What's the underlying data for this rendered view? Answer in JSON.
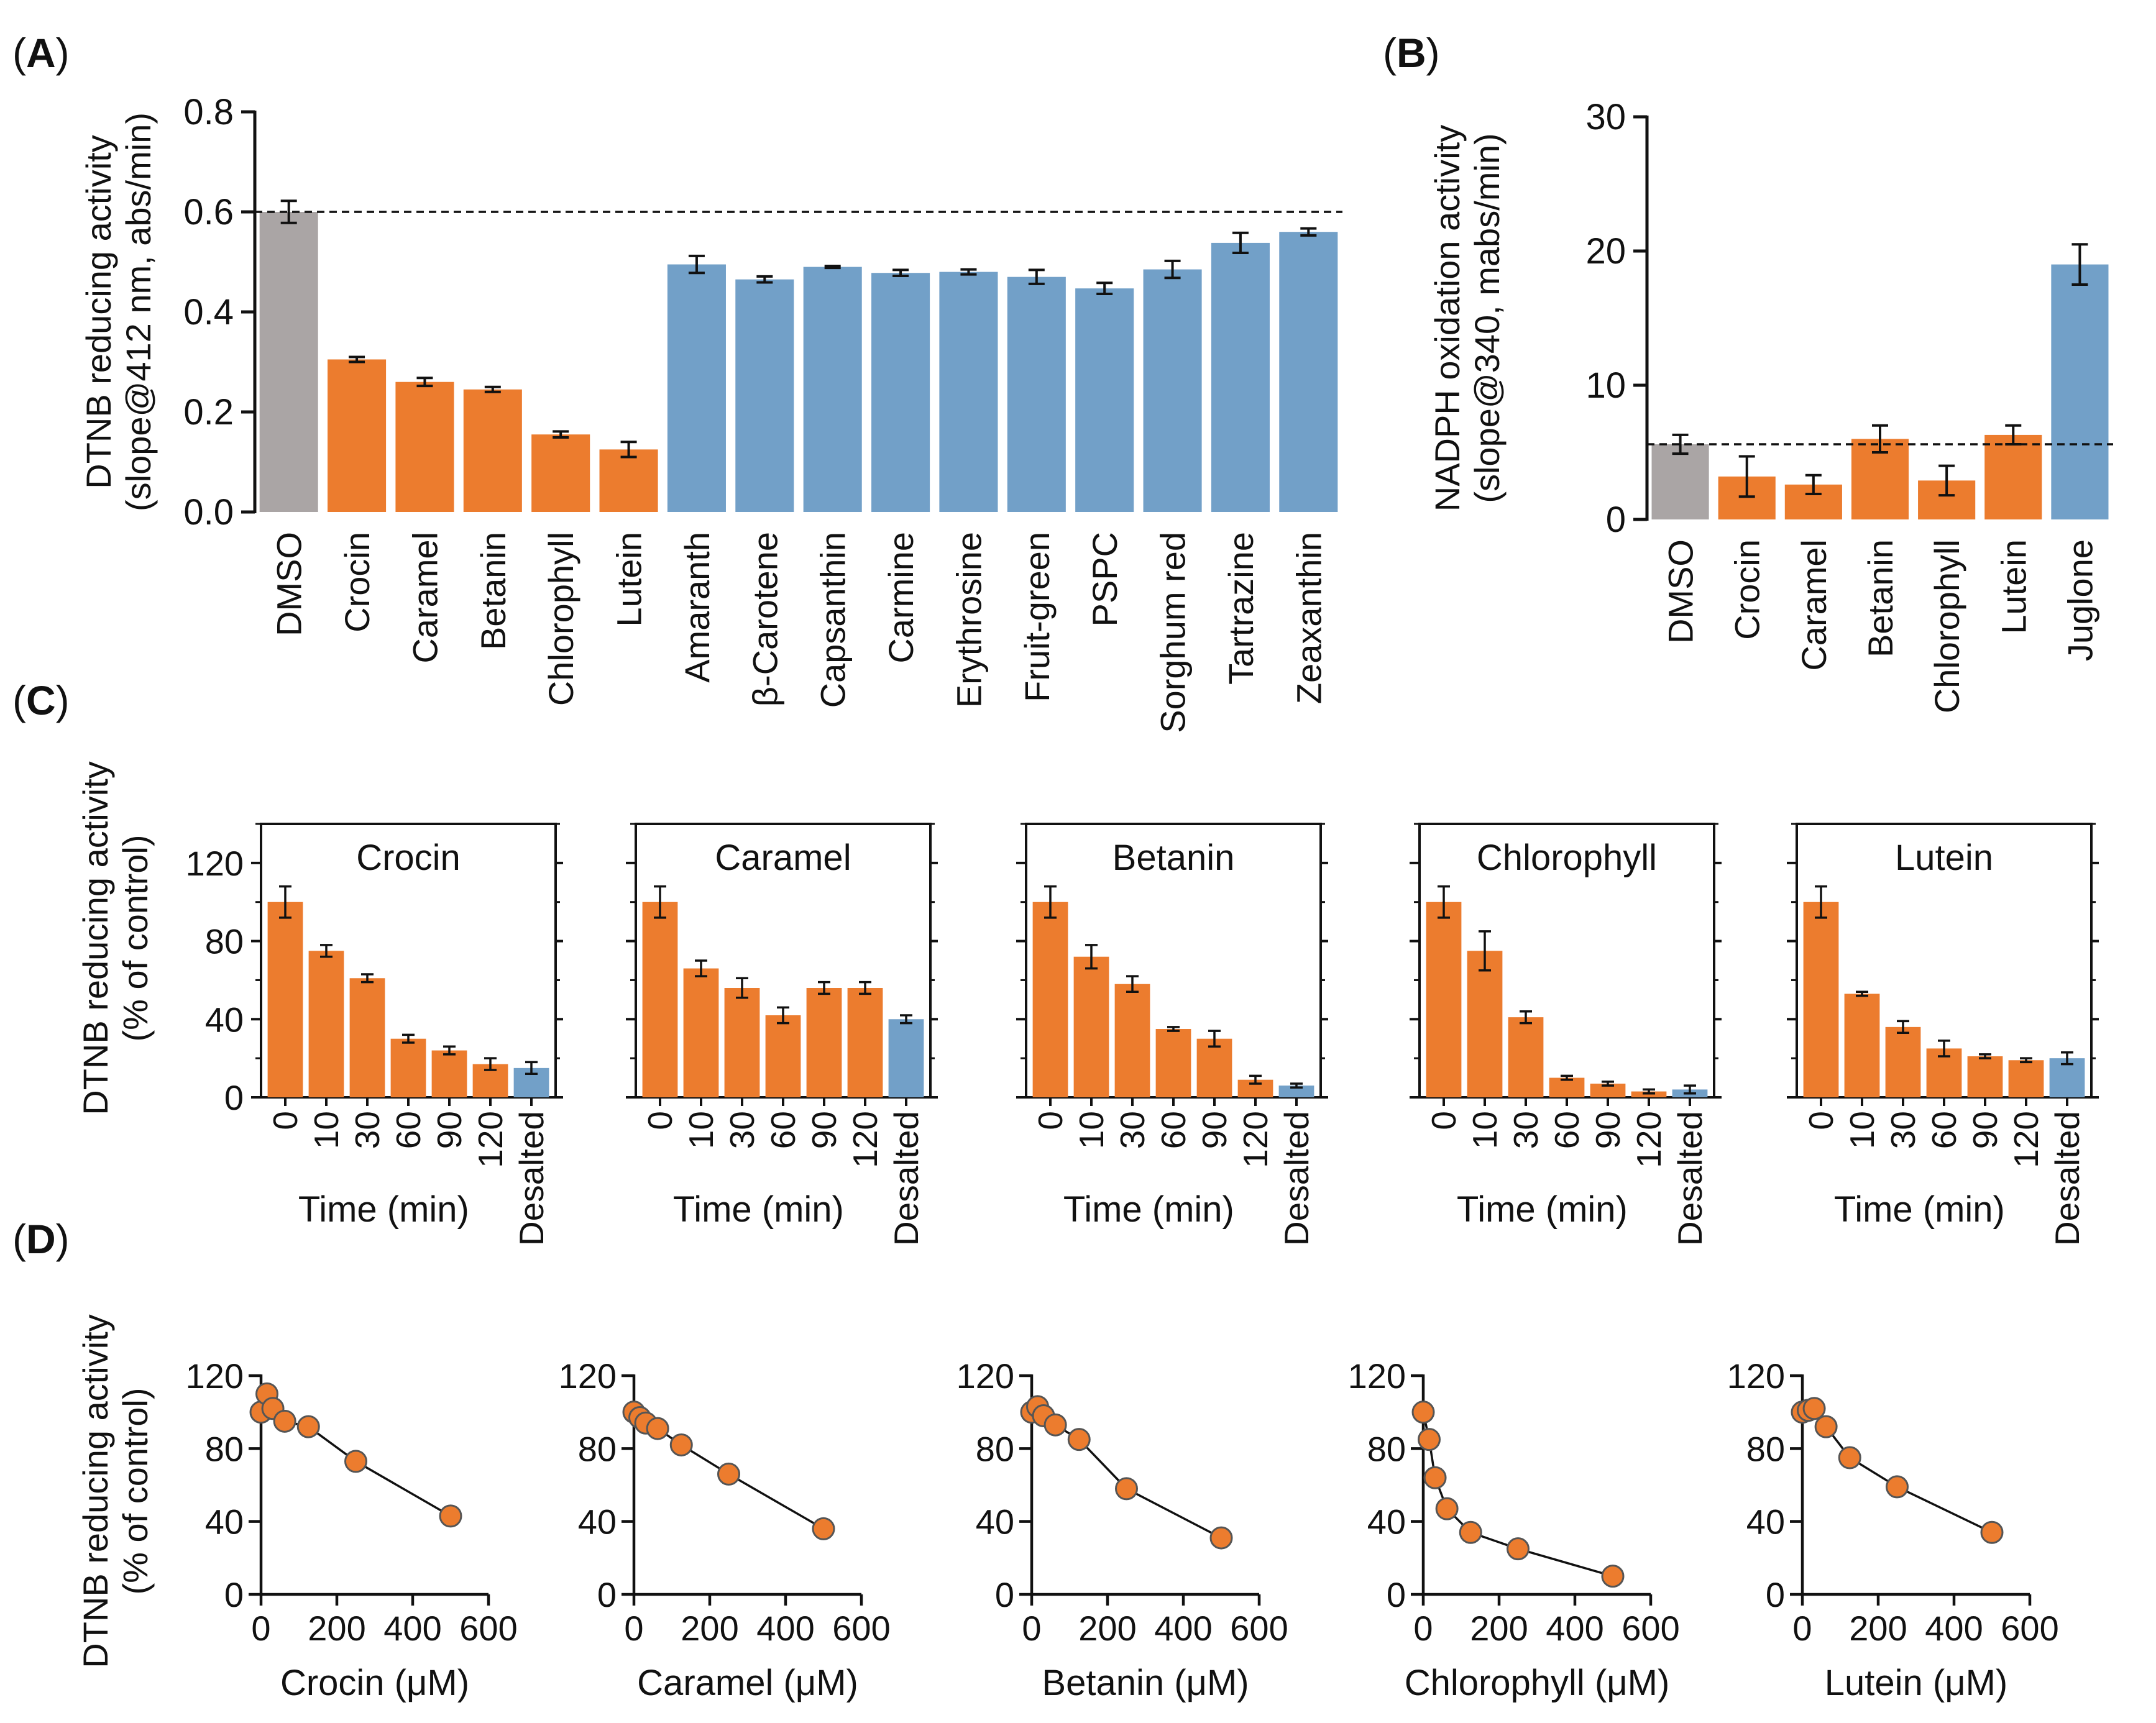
{
  "colors": {
    "gray": "#aaa5a5",
    "orange": "#ec7c2e",
    "blue": "#72a0c8",
    "red_label": "#c01020",
    "axis": "#111111",
    "edge": "#555555"
  },
  "panel_labels": {
    "A": {
      "open": "(",
      "letter": "A",
      "close": ")"
    },
    "B": {
      "open": "(",
      "letter": "B",
      "close": ")"
    },
    "C": {
      "open": "(",
      "letter": "C",
      "close": ")"
    },
    "D": {
      "open": "(",
      "letter": "D",
      "close": ")"
    }
  },
  "chart_data": [
    {
      "id": "A",
      "type": "bar",
      "ylabel_lines": [
        "DTNB reducing activity",
        "(slope@412 nm, abs/min)"
      ],
      "ylim": [
        0,
        0.8
      ],
      "yticks": [
        "0.0",
        "0.2",
        "0.4",
        "0.6",
        "0.8"
      ],
      "reference_line": 0.6,
      "categories": [
        "DMSO",
        "Crocin",
        "Caramel",
        "Betanin",
        "Chlorophyll",
        "Lutein",
        "Amaranth",
        "β-Carotene",
        "Capsanthin",
        "Carmine",
        "Erythrosine",
        "Fruit-green",
        "PSPC",
        "Sorghum red",
        "Tartrazine",
        "Zeaxanthin"
      ],
      "values": [
        0.6,
        0.305,
        0.26,
        0.245,
        0.155,
        0.125,
        0.495,
        0.465,
        0.49,
        0.478,
        0.48,
        0.47,
        0.447,
        0.485,
        0.538,
        0.56
      ],
      "errors": [
        0.022,
        0.005,
        0.008,
        0.005,
        0.006,
        0.015,
        0.017,
        0.006,
        0.002,
        0.006,
        0.005,
        0.014,
        0.011,
        0.017,
        0.02,
        0.007
      ],
      "bar_colors": [
        "gray",
        "orange",
        "orange",
        "orange",
        "orange",
        "orange",
        "blue",
        "blue",
        "blue",
        "blue",
        "blue",
        "blue",
        "blue",
        "blue",
        "blue",
        "blue"
      ],
      "label_colors": [
        "axis",
        "red_label",
        "red_label",
        "red_label",
        "red_label",
        "red_label",
        "axis",
        "axis",
        "axis",
        "axis",
        "axis",
        "axis",
        "axis",
        "axis",
        "axis",
        "axis"
      ]
    },
    {
      "id": "B",
      "type": "bar",
      "ylabel_lines": [
        "NADPH oxidation activity",
        "(slope@340, mabs/min)"
      ],
      "ylim": [
        0,
        30
      ],
      "yticks": [
        "0",
        "10",
        "20",
        "30"
      ],
      "reference_line": 5.6,
      "categories": [
        "DMSO",
        "Crocin",
        "Caramel",
        "Betanin",
        "Chlorophyll",
        "Lutein",
        "Juglone"
      ],
      "values": [
        5.6,
        3.2,
        2.6,
        6.0,
        2.9,
        6.3,
        19.0
      ],
      "errors": [
        0.7,
        1.5,
        0.7,
        1.0,
        1.1,
        0.7,
        1.5
      ],
      "bar_colors": [
        "gray",
        "orange",
        "orange",
        "orange",
        "orange",
        "orange",
        "blue"
      ],
      "label_colors": [
        "axis",
        "axis",
        "axis",
        "axis",
        "axis",
        "axis",
        "axis"
      ]
    },
    {
      "id": "C",
      "type": "bar",
      "ylabel_lines": [
        "DTNB reducing activity",
        "(% of control)"
      ],
      "ylim": [
        0,
        140
      ],
      "yticks": [
        "0",
        "40",
        "80",
        "120"
      ],
      "xlabel": "Time (min)",
      "categories": [
        "0",
        "10",
        "30",
        "60",
        "90",
        "120",
        "Desalted"
      ],
      "bar_colors": [
        "orange",
        "orange",
        "orange",
        "orange",
        "orange",
        "orange",
        "blue"
      ],
      "subplots": [
        {
          "title": "Crocin",
          "values": [
            100,
            75,
            61,
            30,
            24,
            17,
            15
          ],
          "errors": [
            8,
            3,
            2,
            2,
            2,
            3,
            3
          ]
        },
        {
          "title": "Caramel",
          "values": [
            100,
            66,
            56,
            42,
            56,
            56,
            40
          ],
          "errors": [
            8,
            4,
            5,
            4,
            3,
            3,
            2
          ]
        },
        {
          "title": "Betanin",
          "values": [
            100,
            72,
            58,
            35,
            30,
            9,
            6
          ],
          "errors": [
            8,
            6,
            4,
            1,
            4,
            2,
            1
          ]
        },
        {
          "title": "Chlorophyll",
          "values": [
            100,
            75,
            41,
            10,
            7,
            3,
            4
          ],
          "errors": [
            8,
            10,
            3,
            1,
            1,
            1,
            2
          ]
        },
        {
          "title": "Lutein",
          "values": [
            100,
            53,
            36,
            25,
            21,
            19,
            20
          ],
          "errors": [
            8,
            1,
            3,
            4,
            1,
            1,
            3
          ]
        }
      ]
    },
    {
      "id": "D",
      "type": "scatter",
      "ylabel_lines": [
        "DTNB reducing activity",
        "(% of control)"
      ],
      "xlim": [
        0,
        600
      ],
      "ylim": [
        0,
        120
      ],
      "xticks": [
        "0",
        "200",
        "400",
        "600"
      ],
      "yticks": [
        "0",
        "40",
        "80",
        "120"
      ],
      "subplots": [
        {
          "xlabel": "Crocin (μM)",
          "x": [
            0,
            15.6,
            31.25,
            62.5,
            125,
            250,
            500
          ],
          "y": [
            100,
            110,
            102,
            95,
            92,
            73,
            43
          ]
        },
        {
          "xlabel": "Caramel (μM)",
          "x": [
            0,
            15.6,
            31.25,
            62.5,
            125,
            250,
            500
          ],
          "y": [
            100,
            97,
            94,
            91,
            82,
            66,
            36
          ]
        },
        {
          "xlabel": "Betanin (μM)",
          "x": [
            0,
            15.6,
            31.25,
            62.5,
            125,
            250,
            500
          ],
          "y": [
            100,
            103,
            98,
            93,
            85,
            58,
            31
          ]
        },
        {
          "xlabel": "Chlorophyll (μM)",
          "x": [
            0,
            15.6,
            31.25,
            62.5,
            125,
            250,
            500
          ],
          "y": [
            100,
            85,
            64,
            47,
            34,
            25,
            10
          ]
        },
        {
          "xlabel": "Lutein (μM)",
          "x": [
            0,
            15.6,
            31.25,
            62.5,
            125,
            250,
            500
          ],
          "y": [
            100,
            101,
            102,
            92,
            75,
            59,
            34
          ]
        }
      ]
    }
  ]
}
